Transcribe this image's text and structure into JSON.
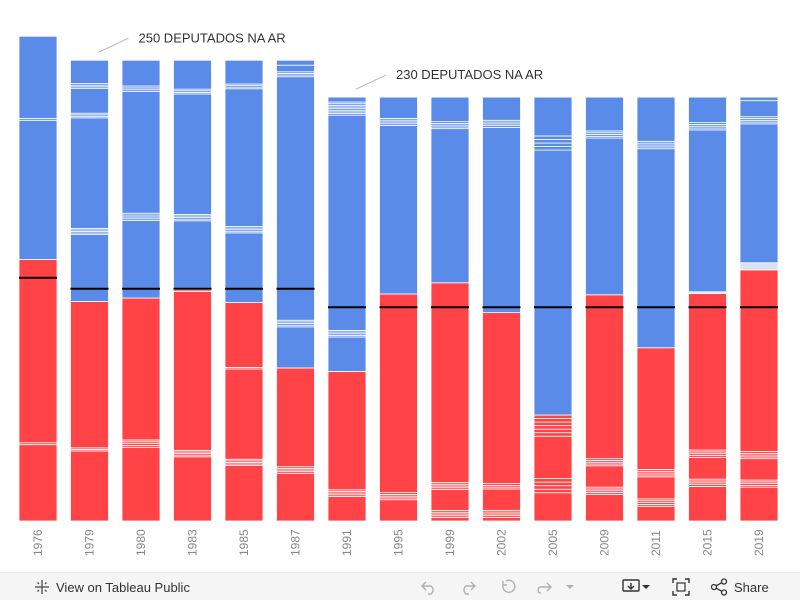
{
  "chart_data": {
    "type": "bar",
    "stacked": true,
    "categories": [
      "1976",
      "1979",
      "1980",
      "1983",
      "1985",
      "1987",
      "1991",
      "1995",
      "1999",
      "2002",
      "2005",
      "2009",
      "2011",
      "2015",
      "2019"
    ],
    "total_seats": [
      263,
      250,
      250,
      250,
      250,
      250,
      230,
      230,
      230,
      230,
      230,
      230,
      230,
      230,
      230
    ],
    "red_segments": [
      [
        40,
        1,
        96
      ],
      [
        45,
        1,
        1,
        94
      ],
      [
        40,
        1,
        1,
        1,
        1,
        77
      ],
      [
        40,
        1,
        1,
        1,
        1,
        99,
        1
      ],
      [
        35,
        1,
        1,
        1,
        1,
        57,
        1,
        41
      ],
      [
        29,
        1,
        1,
        1,
        1,
        60
      ],
      [
        15,
        1,
        1,
        1,
        1,
        72
      ],
      [
        12,
        1,
        1,
        1,
        1,
        112
      ],
      [
        2,
        1,
        1,
        1,
        1,
        12,
        1,
        1,
        1,
        1,
        114
      ],
      [
        2,
        1,
        1,
        1,
        1,
        12,
        1,
        1,
        1,
        96
      ],
      [
        8,
        1,
        1,
        1,
        1,
        12,
        1,
        1,
        1,
        1,
        1,
        1,
        1,
        1,
        1,
        1,
        1,
        1,
        1,
        1,
        1,
        1,
        1,
        1,
        1,
        1,
        1,
        1,
        1,
        1,
        1,
        1,
        1,
        1,
        1,
        1,
        1,
        1,
        1,
        1,
        1,
        1,
        1,
        1,
        1,
        1,
        1,
        1,
        1,
        1,
        1,
        1,
        1,
        1,
        1,
        1,
        1,
        1,
        1,
        1,
        1,
        1,
        1,
        1,
        1,
        1,
        1,
        1,
        1,
        1,
        1,
        1,
        1,
        1,
        1,
        1,
        1,
        1,
        1,
        1,
        1,
        1,
        1,
        1,
        1,
        1,
        1,
        1,
        1,
        1,
        1,
        1,
        1,
        1,
        1,
        1,
        1,
        1,
        1,
        1,
        1,
        1,
        1,
        1,
        1,
        1,
        1,
        1,
        1,
        1,
        1,
        1,
        1,
        1,
        1,
        1,
        1,
        1,
        1,
        1,
        1,
        1,
        1,
        1,
        1,
        1,
        1,
        1,
        1,
        1,
        1,
        1
      ],
      [
        15,
        1,
        1,
        1,
        1,
        12,
        1,
        1,
        1,
        1,
        92
      ],
      [
        8,
        1,
        1,
        1,
        1,
        12,
        1,
        1,
        1,
        1,
        66
      ],
      [
        19,
        1,
        1,
        1,
        1,
        12,
        1,
        1,
        1,
        1,
        86
      ],
      [
        19,
        1,
        1,
        1,
        1,
        12,
        1,
        1,
        1,
        1,
        102
      ]
    ],
    "blue_segments": [
      [
        73,
        1,
        43
      ],
      [
        43,
        1,
        1,
        1,
        1,
        71,
        1,
        1,
        1,
        16,
        1,
        1,
        1,
        15
      ],
      [
        42,
        1,
        1,
        1,
        1,
        66,
        1,
        1,
        1,
        14
      ],
      [
        43,
        1,
        1,
        1,
        1,
        75,
        1,
        1,
        1,
        18
      ],
      [
        44,
        1,
        1,
        1,
        1,
        87,
        1,
        1,
        1,
        15
      ],
      [
        25,
        1,
        1,
        1,
        1,
        148,
        1,
        1,
        1,
        4
      ],
      [
        21,
        1,
        1,
        1,
        1,
        131,
        1,
        1,
        1,
        1,
        1,
        1,
        1,
        1,
        1,
        1,
        1,
        1,
        1,
        1,
        1,
        1,
        1,
        1,
        1,
        1,
        1,
        1,
        1,
        1,
        1,
        1,
        1,
        1,
        1,
        1,
        1,
        1,
        1,
        1,
        1,
        1,
        1,
        1,
        1,
        1,
        1,
        1,
        1,
        1,
        1,
        1,
        1,
        1,
        1,
        1,
        1,
        1,
        1,
        1,
        1,
        1,
        1,
        1,
        1,
        1,
        1,
        1,
        1,
        1,
        1,
        1,
        1,
        1,
        1,
        1,
        1,
        1,
        1,
        1,
        1,
        1,
        1,
        1,
        1,
        1,
        1,
        1,
        1,
        1,
        1,
        1,
        1,
        1,
        1,
        1,
        1,
        1,
        1,
        1,
        1,
        1,
        1,
        1,
        1,
        1,
        1,
        1,
        1,
        1,
        1,
        1,
        1,
        1,
        1,
        1,
        1,
        1,
        1,
        1,
        1,
        1,
        1,
        1,
        1,
        1,
        1,
        1,
        1,
        1,
        1,
        1,
        1,
        1,
        1,
        1,
        1,
        1,
        1,
        1,
        1,
        1,
        1,
        1,
        1,
        1,
        1,
        1,
        1,
        1,
        1,
        1,
        1,
        1,
        1,
        1,
        1,
        1,
        1,
        1,
        1,
        1,
        1,
        1,
        1,
        1,
        1,
        1,
        1
      ],
      [
        95,
        1,
        1,
        1,
        1,
        12
      ],
      [
        88,
        1,
        1,
        1,
        1,
        14
      ],
      [
        104,
        1,
        1,
        1,
        1,
        13
      ],
      [
        75,
        1,
        1,
        1,
        1,
        11
      ],
      [
        88,
        1,
        1,
        1,
        1,
        19
      ],
      [
        108,
        1,
        1,
        1,
        1,
        24
      ],
      [
        89,
        1,
        1,
        1,
        1,
        14
      ],
      [
        78,
        1,
        1,
        1,
        1,
        9
      ]
    ],
    "grey_segments": [
      0,
      0,
      0,
      0,
      0,
      0,
      0,
      0,
      0,
      0,
      0,
      0,
      0,
      1,
      4
    ],
    "cap_segments": [
      0,
      0,
      0,
      0,
      0,
      3,
      3,
      0,
      0,
      0,
      0,
      0,
      0,
      0,
      2
    ],
    "majority_line": [
      132,
      126,
      126,
      126,
      126,
      126,
      116,
      116,
      116,
      116,
      116,
      116,
      116,
      116,
      116
    ],
    "annotations": [
      {
        "text": "250 DEPUTADOS NA AR",
        "category": "1979"
      },
      {
        "text": "230 DEPUTADOS NA AR",
        "category": "1991"
      }
    ],
    "colors": {
      "left": "#ff4347",
      "right": "#5b8be8",
      "other": "#d8e2f2",
      "majority": "#000000",
      "annotation_line": "#bbbbbb"
    },
    "xlabel": "",
    "ylabel": ""
  },
  "toolbar": {
    "view_label": "View on Tableau Public",
    "share_label": "Share"
  },
  "icons": [
    "tableau-icon",
    "undo-icon",
    "redo-icon",
    "revert-icon",
    "forward-icon",
    "dropdown-icon",
    "download-icon",
    "fullscreen-icon",
    "share-icon"
  ]
}
